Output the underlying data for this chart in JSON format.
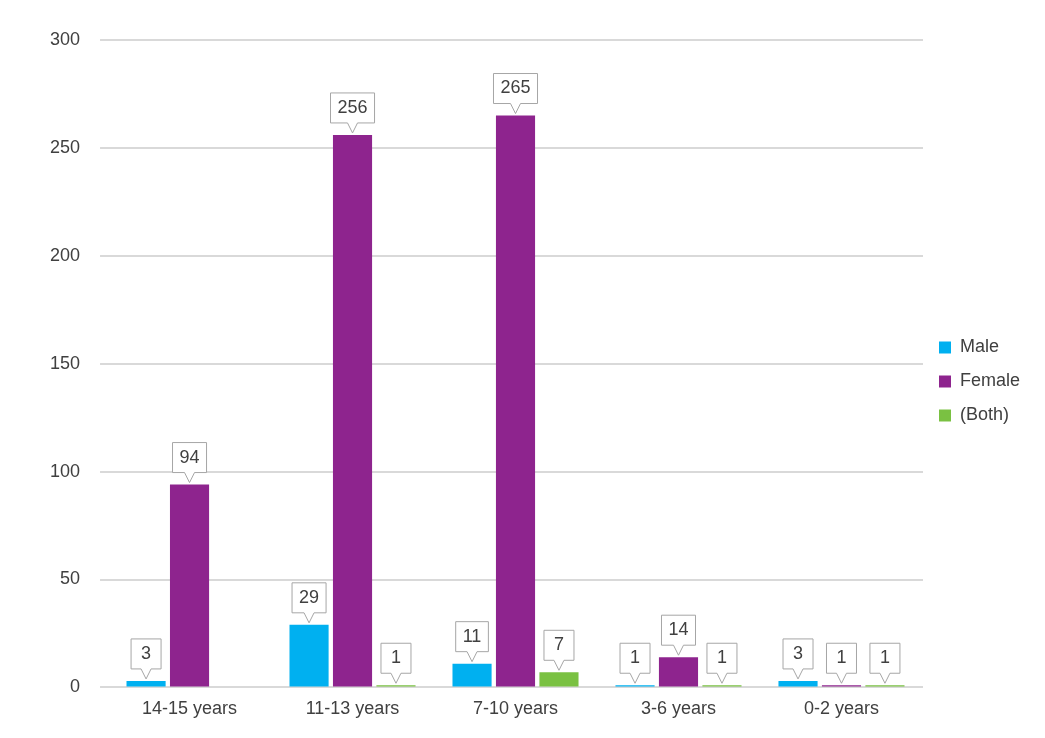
{
  "chart_data": {
    "type": "bar",
    "categories": [
      "14-15 years",
      "11-13 years",
      "7-10 years",
      "3-6 years",
      "0-2 years"
    ],
    "series": [
      {
        "name": "Male",
        "color": "#00b0f0",
        "values": [
          3,
          29,
          11,
          1,
          3
        ]
      },
      {
        "name": "Female",
        "color": "#8e248e",
        "values": [
          94,
          256,
          265,
          14,
          1
        ]
      },
      {
        "name": "(Both)",
        "color": "#7ac142",
        "values": [
          null,
          1,
          7,
          1,
          1
        ]
      }
    ],
    "ylim": [
      0,
      300
    ],
    "yticks": [
      0,
      50,
      100,
      150,
      200,
      250,
      300
    ],
    "grid": "y",
    "legend": "right",
    "data_labels": true
  }
}
